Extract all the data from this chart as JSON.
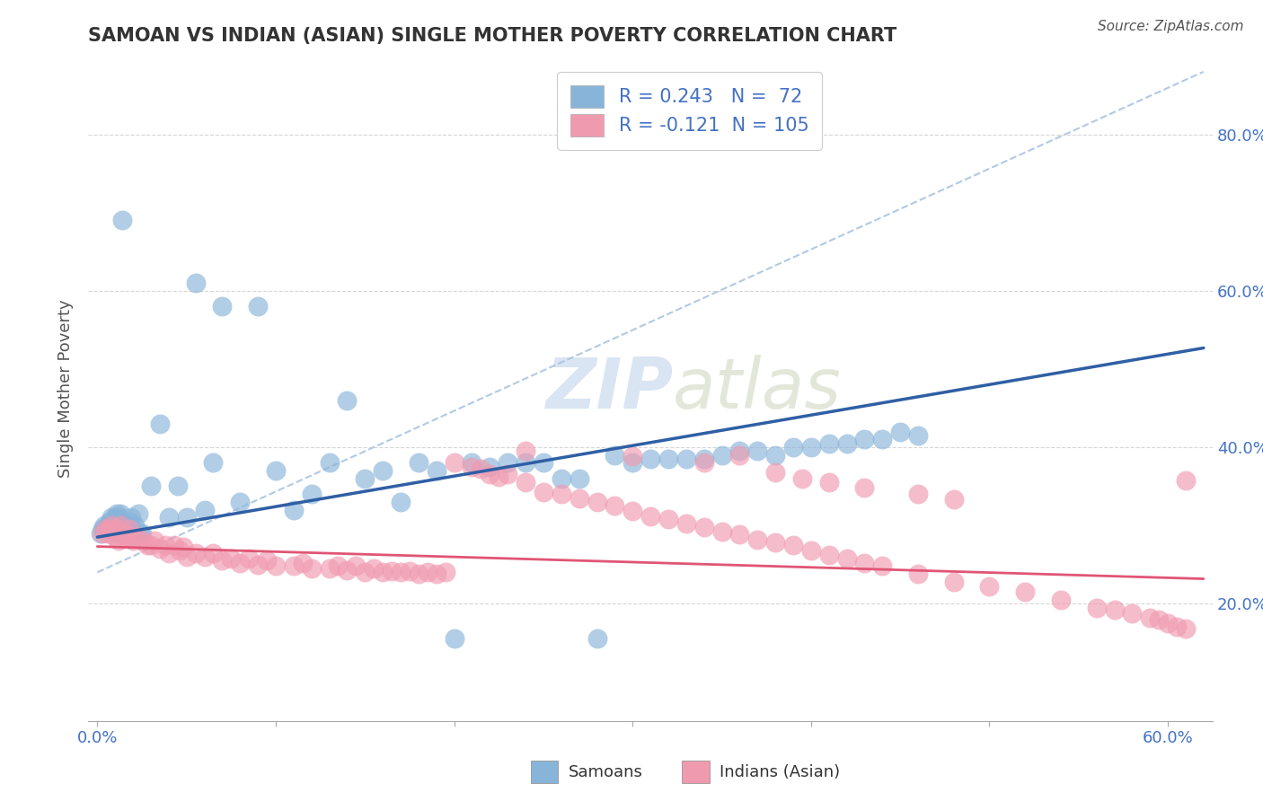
{
  "title": "SAMOAN VS INDIAN (ASIAN) SINGLE MOTHER POVERTY CORRELATION CHART",
  "source": "Source: ZipAtlas.com",
  "ylabel_label": "Single Mother Poverty",
  "xlim": [
    -0.005,
    0.625
  ],
  "ylim": [
    0.05,
    0.9
  ],
  "samoan_R": 0.243,
  "samoan_N": 72,
  "indian_R": -0.121,
  "indian_N": 105,
  "samoan_color": "#89b4d9",
  "indian_color": "#f09ab0",
  "samoan_line_color": "#2f5fa5",
  "indian_line_color": "#e05575",
  "dashed_line_color": "#aac4e0",
  "background_color": "#ffffff",
  "grid_color": "#cccccc",
  "title_color": "#333333",
  "legend_text_color": "#4472c4",
  "watermark_color": "#c0d4ea",
  "samoan_x": [
    0.002,
    0.003,
    0.004,
    0.005,
    0.006,
    0.007,
    0.008,
    0.009,
    0.01,
    0.011,
    0.012,
    0.013,
    0.014,
    0.015,
    0.016,
    0.017,
    0.018,
    0.019,
    0.02,
    0.021,
    0.022,
    0.023,
    0.024,
    0.025,
    0.03,
    0.035,
    0.04,
    0.045,
    0.05,
    0.055,
    0.06,
    0.065,
    0.07,
    0.08,
    0.09,
    0.1,
    0.11,
    0.12,
    0.13,
    0.14,
    0.15,
    0.16,
    0.17,
    0.18,
    0.19,
    0.2,
    0.21,
    0.22,
    0.23,
    0.24,
    0.25,
    0.26,
    0.27,
    0.28,
    0.29,
    0.3,
    0.31,
    0.32,
    0.33,
    0.34,
    0.35,
    0.36,
    0.37,
    0.38,
    0.39,
    0.4,
    0.41,
    0.42,
    0.43,
    0.44,
    0.45,
    0.46
  ],
  "samoan_y": [
    0.29,
    0.295,
    0.3,
    0.295,
    0.3,
    0.305,
    0.31,
    0.29,
    0.31,
    0.315,
    0.31,
    0.315,
    0.69,
    0.295,
    0.29,
    0.3,
    0.305,
    0.31,
    0.285,
    0.3,
    0.285,
    0.315,
    0.29,
    0.29,
    0.35,
    0.43,
    0.31,
    0.35,
    0.31,
    0.61,
    0.32,
    0.38,
    0.58,
    0.33,
    0.58,
    0.37,
    0.32,
    0.34,
    0.38,
    0.46,
    0.36,
    0.37,
    0.33,
    0.38,
    0.37,
    0.155,
    0.38,
    0.375,
    0.38,
    0.38,
    0.38,
    0.36,
    0.36,
    0.155,
    0.39,
    0.38,
    0.385,
    0.385,
    0.385,
    0.385,
    0.39,
    0.395,
    0.395,
    0.39,
    0.4,
    0.4,
    0.405,
    0.405,
    0.41,
    0.41,
    0.42,
    0.415
  ],
  "indian_x": [
    0.003,
    0.005,
    0.006,
    0.007,
    0.008,
    0.009,
    0.01,
    0.011,
    0.012,
    0.013,
    0.015,
    0.016,
    0.017,
    0.018,
    0.02,
    0.022,
    0.025,
    0.028,
    0.03,
    0.032,
    0.035,
    0.038,
    0.04,
    0.043,
    0.046,
    0.048,
    0.05,
    0.055,
    0.06,
    0.065,
    0.07,
    0.075,
    0.08,
    0.085,
    0.09,
    0.095,
    0.1,
    0.11,
    0.115,
    0.12,
    0.13,
    0.135,
    0.14,
    0.145,
    0.15,
    0.155,
    0.16,
    0.165,
    0.17,
    0.175,
    0.18,
    0.185,
    0.19,
    0.195,
    0.2,
    0.21,
    0.215,
    0.22,
    0.225,
    0.23,
    0.24,
    0.25,
    0.26,
    0.27,
    0.28,
    0.29,
    0.3,
    0.31,
    0.32,
    0.33,
    0.34,
    0.35,
    0.36,
    0.37,
    0.38,
    0.39,
    0.4,
    0.41,
    0.42,
    0.43,
    0.44,
    0.46,
    0.48,
    0.5,
    0.52,
    0.54,
    0.56,
    0.57,
    0.58,
    0.59,
    0.595,
    0.6,
    0.605,
    0.61,
    0.24,
    0.3,
    0.34,
    0.36,
    0.38,
    0.395,
    0.41,
    0.43,
    0.46,
    0.48,
    0.61
  ],
  "indian_y": [
    0.29,
    0.295,
    0.29,
    0.295,
    0.3,
    0.295,
    0.285,
    0.295,
    0.28,
    0.3,
    0.285,
    0.29,
    0.285,
    0.295,
    0.28,
    0.285,
    0.28,
    0.275,
    0.275,
    0.28,
    0.27,
    0.275,
    0.265,
    0.275,
    0.268,
    0.272,
    0.26,
    0.265,
    0.26,
    0.265,
    0.255,
    0.258,
    0.252,
    0.258,
    0.25,
    0.255,
    0.248,
    0.248,
    0.252,
    0.245,
    0.245,
    0.248,
    0.243,
    0.248,
    0.24,
    0.245,
    0.24,
    0.242,
    0.24,
    0.242,
    0.238,
    0.24,
    0.238,
    0.24,
    0.38,
    0.375,
    0.372,
    0.365,
    0.362,
    0.365,
    0.355,
    0.342,
    0.34,
    0.335,
    0.33,
    0.325,
    0.318,
    0.312,
    0.308,
    0.302,
    0.298,
    0.292,
    0.288,
    0.282,
    0.278,
    0.275,
    0.268,
    0.262,
    0.258,
    0.252,
    0.248,
    0.238,
    0.228,
    0.222,
    0.215,
    0.205,
    0.195,
    0.192,
    0.188,
    0.182,
    0.18,
    0.175,
    0.17,
    0.168,
    0.395,
    0.388,
    0.38,
    0.39,
    0.368,
    0.36,
    0.355,
    0.348,
    0.34,
    0.333,
    0.358
  ]
}
